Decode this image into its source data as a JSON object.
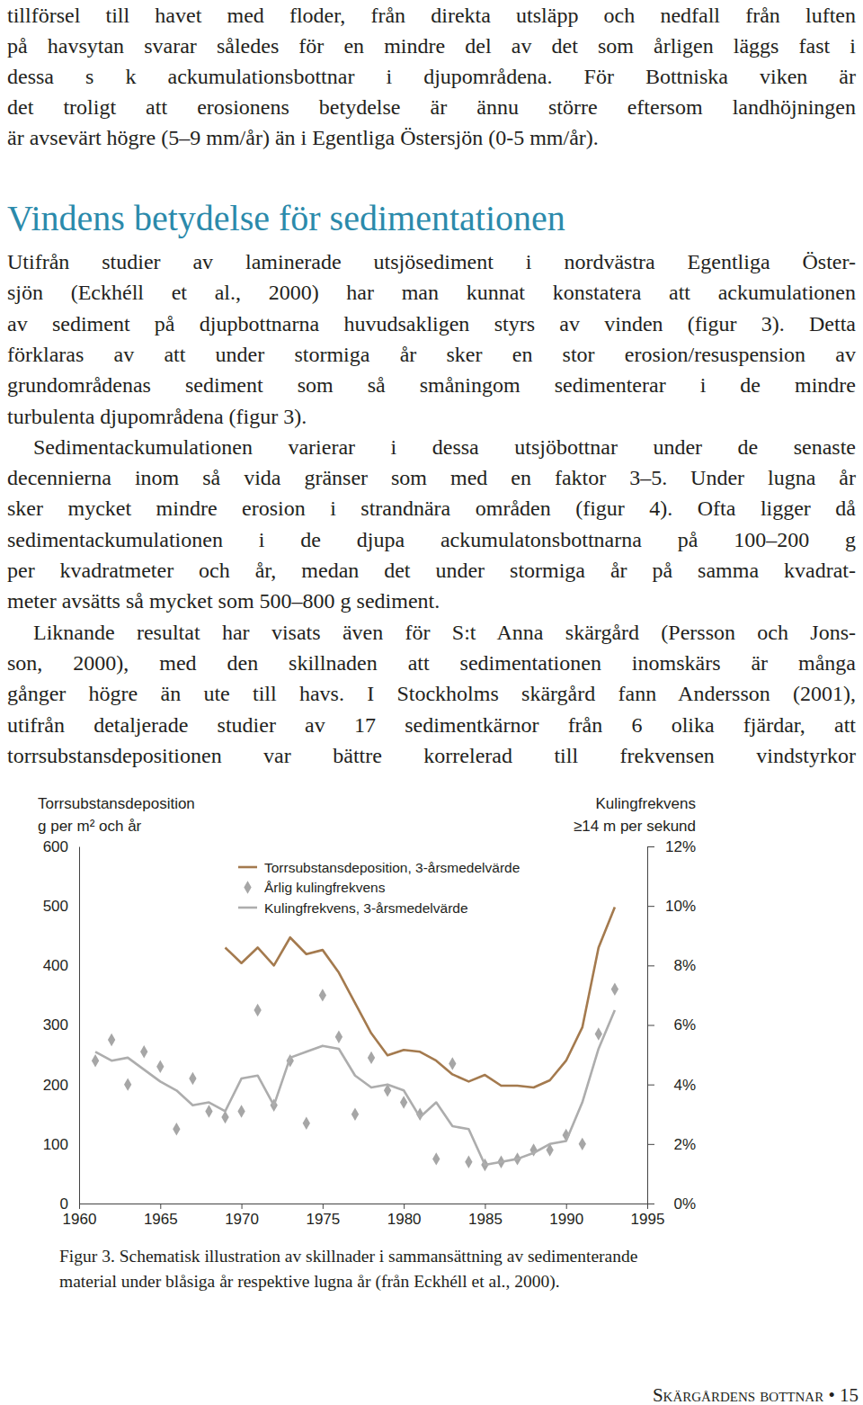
{
  "document": {
    "sections": [
      {
        "paragraphs": [
          [
            "tillförsel till havet med floder, från direkta utsläpp och nedfall från luften",
            "på havsytan svarar således för en mindre del av det som årligen läggs fast i",
            "dessa s k ackumulationsbottnar i djupområdena. För Bottniska viken är",
            "det troligt att erosionens betydelse är ännu större eftersom landhöjningen",
            "är avsevärt högre (5–9 mm/år) än i Egentliga Östersjön (0-5 mm/år)."
          ]
        ]
      },
      {
        "heading": "Vindens betydelse för sedimentationen",
        "paragraphs": [
          [
            "Utifrån studier av laminerade utsjösediment i nordvästra Egentliga Öster-",
            "sjön (Eckhéll et al., 2000) har man kunnat konstatera att ackumulationen",
            "av sediment på djupbottnarna huvudsakligen styrs av vinden (figur 3). Detta",
            "förklaras av att under stormiga år sker en stor erosion/resuspension av",
            "grundområdenas sediment som så småningom sedimenterar i de mindre",
            "turbulenta djupområdena (figur 3)."
          ],
          [
            "Sedimentackumulationen varierar i dessa utsjöbottnar under de senaste",
            "decennierna inom så vida gränser som med en faktor 3–5. Under lugna år",
            "sker mycket mindre erosion i strandnära områden (figur 4). Ofta ligger då",
            "sedimentackumulationen i de djupa ackumulatonsbottnarna på 100–200 g",
            "per kvadratmeter och år, medan det under stormiga år på samma kvadrat-",
            "meter avsätts så mycket som 500–800 g sediment."
          ],
          [
            "Liknande resultat har visats även för S:t Anna skärgård (Persson och Jons-",
            "son, 2000), med den skillnaden att sedimentationen inomskärs är många",
            "gånger högre än ute till havs. I Stockholms skärgård fann Andersson (2001),",
            "utifrån detaljerade studier av 17 sedimentkärnor från 6 olika fjärdar, att",
            "torrsubstansdepositionen var bättre korrelerad till frekvensen vindstyrkor"
          ]
        ]
      }
    ],
    "figure_caption": [
      "Figur 3. Schematisk illustration av skillnader i sammansättning av sedimenterande",
      "material under blåsiga år respektive lugna år (från Eckhéll et al., 2000)."
    ],
    "footer": "Skärgårdens bottnar • 15"
  },
  "chart_data": {
    "type": "line",
    "ylabel": [
      "Torrsubstansdeposition",
      "g per m² och år"
    ],
    "y2label": [
      "Kulingfrekvens",
      "≥14 m per sekund"
    ],
    "x": [
      1961,
      1962,
      1963,
      1964,
      1965,
      1966,
      1967,
      1968,
      1969,
      1970,
      1971,
      1972,
      1973,
      1974,
      1975,
      1976,
      1977,
      1978,
      1979,
      1980,
      1981,
      1982,
      1983,
      1984,
      1985,
      1986,
      1987,
      1988,
      1989,
      1990,
      1991,
      1992,
      1993
    ],
    "xlim": [
      1960,
      1995
    ],
    "xticks": [
      1960,
      1965,
      1970,
      1975,
      1980,
      1985,
      1990,
      1995
    ],
    "ylim": [
      0,
      600
    ],
    "yticks": [
      0,
      100,
      200,
      300,
      400,
      500,
      600
    ],
    "y2lim": [
      0,
      12
    ],
    "y2ticks": [
      {
        "value": 0,
        "label": "0%"
      },
      {
        "value": 2,
        "label": "2%"
      },
      {
        "value": 4,
        "label": "4%"
      },
      {
        "value": 6,
        "label": "6%"
      },
      {
        "value": 8,
        "label": "8%"
      },
      {
        "value": 10,
        "label": "10%"
      },
      {
        "value": 12,
        "label": "12%"
      }
    ],
    "grid": false,
    "legend": "top",
    "series": [
      {
        "name": "Torrsubstansdeposition, 3-årsmedelvärde",
        "color": "#a47a4e",
        "type": "line",
        "line_style": "solid",
        "values": [
          null,
          null,
          null,
          null,
          null,
          null,
          null,
          null,
          430,
          404,
          430,
          400,
          447,
          419,
          426,
          388,
          337,
          286,
          249,
          258,
          255,
          240,
          217,
          205,
          216,
          198,
          198,
          195,
          207,
          240,
          296,
          430,
          498
        ]
      },
      {
        "name": "Årlig kulingfrekvens",
        "color": "#a6a6a6",
        "type": "scatter",
        "marker": "diamond",
        "axis": "y2",
        "values": [
          4.8,
          5.5,
          4.0,
          5.1,
          4.6,
          2.5,
          4.2,
          3.1,
          2.9,
          3.1,
          6.5,
          3.3,
          4.8,
          2.7,
          7.0,
          5.6,
          3.0,
          4.9,
          3.8,
          3.4,
          3.0,
          1.5,
          4.7,
          1.4,
          1.3,
          1.4,
          1.5,
          1.8,
          1.8,
          2.3,
          2.0,
          5.7,
          7.2
        ]
      },
      {
        "name": "Kulingfrekvens, 3-årsmedelvärde",
        "color": "#adadad",
        "type": "line",
        "line_style": "solid",
        "axis": "y2",
        "values": [
          5.1,
          4.8,
          4.9,
          4.5,
          4.1,
          3.8,
          3.3,
          3.4,
          3.1,
          4.2,
          4.3,
          3.3,
          4.9,
          5.1,
          5.3,
          5.2,
          4.3,
          3.9,
          4.0,
          3.8,
          2.9,
          3.4,
          2.6,
          2.5,
          1.3,
          1.4,
          1.5,
          1.7,
          2.0,
          2.1,
          3.4,
          5.2,
          6.5
        ]
      }
    ]
  }
}
